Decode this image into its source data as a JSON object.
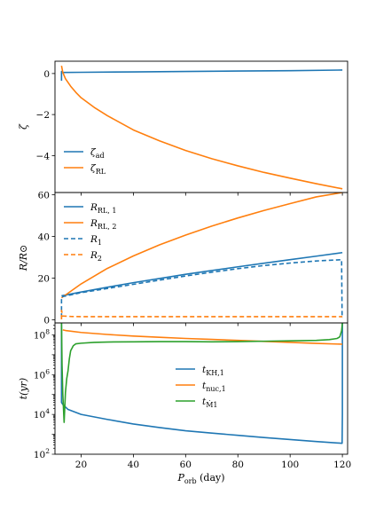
{
  "colors": {
    "blue": "#1f77b4",
    "orange": "#ff7f0e",
    "green": "#2ca02c"
  },
  "chart_data": [
    {
      "type": "line",
      "panel": "top",
      "ylabel": "ζ",
      "xlim": [
        10,
        122
      ],
      "ylim": [
        -5.8,
        0.6
      ],
      "yticks": [
        0,
        -2,
        -4
      ],
      "ytick_labels": [
        "0",
        "−2",
        "−4"
      ],
      "legend": "lower-left",
      "series": [
        {
          "name": "ζad",
          "legend_main": "ζ",
          "legend_sub": "ad",
          "color": "blue",
          "style": "solid",
          "x": [
            12.5,
            12.5,
            12.6,
            20,
            40,
            60,
            80,
            100,
            120
          ],
          "y": [
            -0.35,
            0.1,
            0.05,
            0.06,
            0.08,
            0.1,
            0.12,
            0.14,
            0.17
          ]
        },
        {
          "name": "ζRL",
          "legend_main": "ζ",
          "legend_sub": "RL",
          "color": "orange",
          "style": "solid",
          "x": [
            12.5,
            13,
            14,
            16,
            18,
            20,
            25,
            30,
            40,
            50,
            60,
            70,
            80,
            90,
            100,
            110,
            120
          ],
          "y": [
            0.38,
            0.05,
            -0.25,
            -0.62,
            -0.92,
            -1.18,
            -1.65,
            -2.05,
            -2.75,
            -3.28,
            -3.75,
            -4.15,
            -4.5,
            -4.82,
            -5.1,
            -5.37,
            -5.62
          ]
        }
      ]
    },
    {
      "type": "line",
      "panel": "middle",
      "ylabel": "R/R⊙",
      "xlim": [
        10,
        122
      ],
      "ylim": [
        -1.5,
        61
      ],
      "yticks": [
        0,
        20,
        40,
        60
      ],
      "ytick_labels": [
        "0",
        "20",
        "40",
        "60"
      ],
      "legend": "upper-left",
      "series": [
        {
          "name": "RRL, 1",
          "legend_main": "R",
          "legend_sub": "RL, 1",
          "color": "blue",
          "style": "solid",
          "x": [
            12.5,
            20,
            30,
            40,
            50,
            60,
            70,
            80,
            90,
            100,
            110,
            120
          ],
          "y": [
            11.5,
            13.3,
            15.6,
            17.8,
            19.8,
            21.8,
            23.6,
            25.4,
            27.1,
            28.8,
            30.5,
            32.2
          ]
        },
        {
          "name": "RRL, 2",
          "legend_main": "R",
          "legend_sub": "RL, 2",
          "color": "orange",
          "style": "solid",
          "x": [
            12.5,
            20,
            30,
            40,
            50,
            60,
            70,
            80,
            90,
            100,
            110,
            120
          ],
          "y": [
            10.5,
            17.2,
            24.6,
            30.6,
            35.9,
            40.6,
            44.9,
            48.8,
            52.4,
            55.7,
            58.9,
            61.0
          ]
        },
        {
          "name": "R1",
          "legend_main": "R",
          "legend_sub": "1",
          "color": "blue",
          "style": "dashed",
          "x": [
            12.5,
            12.5,
            20,
            30,
            40,
            50,
            60,
            70,
            80,
            90,
            100,
            110,
            119.7,
            119.9,
            120
          ],
          "y": [
            1.0,
            11.0,
            13.0,
            15.0,
            17.0,
            19.0,
            21.0,
            22.8,
            24.5,
            26.0,
            27.2,
            28.2,
            28.8,
            1.0,
            1.0
          ]
        },
        {
          "name": "R2",
          "legend_main": "R",
          "legend_sub": "2",
          "color": "orange",
          "style": "dashed",
          "x": [
            12.5,
            12.5,
            13,
            16,
            20,
            40,
            60,
            80,
            100,
            120
          ],
          "y": [
            0.2,
            4.5,
            1.8,
            1.6,
            1.5,
            1.5,
            1.5,
            1.5,
            1.5,
            1.5
          ]
        }
      ]
    },
    {
      "type": "line",
      "panel": "bottom",
      "ylabel": "t(yr)",
      "xlabel": "Porb (day)",
      "xlim": [
        10,
        122
      ],
      "xticks": [
        20,
        40,
        60,
        80,
        100,
        120
      ],
      "xtick_labels": [
        "20",
        "40",
        "60",
        "80",
        "100",
        "120"
      ],
      "yscale": "log",
      "ylim_log10": [
        2,
        8.6
      ],
      "yticks_log10": [
        2,
        4,
        6,
        8
      ],
      "legend": "center-right",
      "series": [
        {
          "name": "tKH,1",
          "legend_main": "t",
          "legend_sub": "KH,1",
          "color": "blue",
          "style": "solid",
          "x_log_y": "log10",
          "x": [
            12.5,
            12.5,
            13,
            15,
            20,
            30,
            40,
            50,
            60,
            70,
            80,
            90,
            100,
            110,
            119.9,
            120,
            120
          ],
          "y": [
            8.6,
            4.6,
            4.5,
            4.25,
            4.0,
            3.75,
            3.52,
            3.34,
            3.18,
            3.06,
            2.95,
            2.84,
            2.74,
            2.64,
            2.55,
            4.0,
            8.6
          ]
        },
        {
          "name": "tnuc,1",
          "legend_main": "t",
          "legend_sub": "nuc,1",
          "color": "orange",
          "style": "solid",
          "x": [
            13,
            14,
            20,
            30,
            40,
            50,
            60,
            70,
            80,
            90,
            100,
            110,
            120
          ],
          "y": [
            8.25,
            8.22,
            8.12,
            8.02,
            7.94,
            7.88,
            7.82,
            7.77,
            7.72,
            7.67,
            7.62,
            7.57,
            7.53
          ]
        },
        {
          "name": "tṀ1",
          "legend_main": "t",
          "legend_sub": "Ṁ1",
          "color": "green",
          "style": "solid",
          "x": [
            12.5,
            12.7,
            13.0,
            13.5,
            14.0,
            14.5,
            15.0,
            15.5,
            16.0,
            17.0,
            18.0,
            20.0,
            25.0,
            30.0,
            40.0,
            50.0,
            60.0,
            70.0,
            80.0,
            90.0,
            100.0,
            110.0,
            115.0,
            118.0,
            119.0,
            119.7,
            120.0
          ],
          "y": [
            8.6,
            6.5,
            5.0,
            3.6,
            5.1,
            5.8,
            6.2,
            6.8,
            7.2,
            7.45,
            7.55,
            7.58,
            7.62,
            7.64,
            7.65,
            7.66,
            7.66,
            7.65,
            7.66,
            7.68,
            7.7,
            7.72,
            7.76,
            7.82,
            7.9,
            8.2,
            8.6
          ]
        }
      ]
    }
  ]
}
